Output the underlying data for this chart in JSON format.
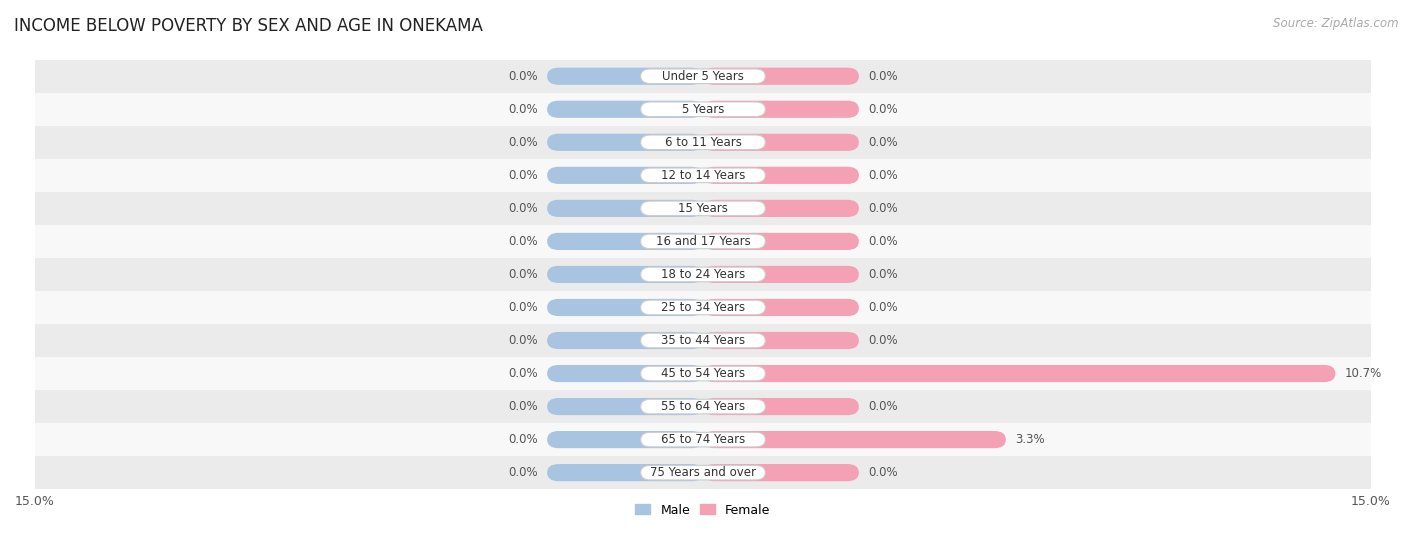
{
  "title": "INCOME BELOW POVERTY BY SEX AND AGE IN ONEKAMA",
  "source": "Source: ZipAtlas.com",
  "categories": [
    "Under 5 Years",
    "5 Years",
    "6 to 11 Years",
    "12 to 14 Years",
    "15 Years",
    "16 and 17 Years",
    "18 to 24 Years",
    "25 to 34 Years",
    "35 to 44 Years",
    "45 to 54 Years",
    "55 to 64 Years",
    "65 to 74 Years",
    "75 Years and over"
  ],
  "male_values": [
    0.0,
    0.0,
    0.0,
    0.0,
    0.0,
    0.0,
    0.0,
    0.0,
    0.0,
    0.0,
    0.0,
    0.0,
    0.0
  ],
  "female_values": [
    0.0,
    0.0,
    0.0,
    0.0,
    0.0,
    0.0,
    0.0,
    0.0,
    0.0,
    10.7,
    0.0,
    3.3,
    0.0
  ],
  "male_color": "#a8c4e0",
  "female_color": "#f4a0b5",
  "male_label": "Male",
  "female_label": "Female",
  "xlim": 15.0,
  "default_bar_extent": 3.5,
  "bar_height": 0.52,
  "bg_row_light": "#ebebeb",
  "bg_row_white": "#f8f8f8",
  "title_fontsize": 12,
  "label_fontsize": 8.5,
  "tick_fontsize": 9,
  "source_fontsize": 8.5,
  "value_fontsize": 8.5
}
